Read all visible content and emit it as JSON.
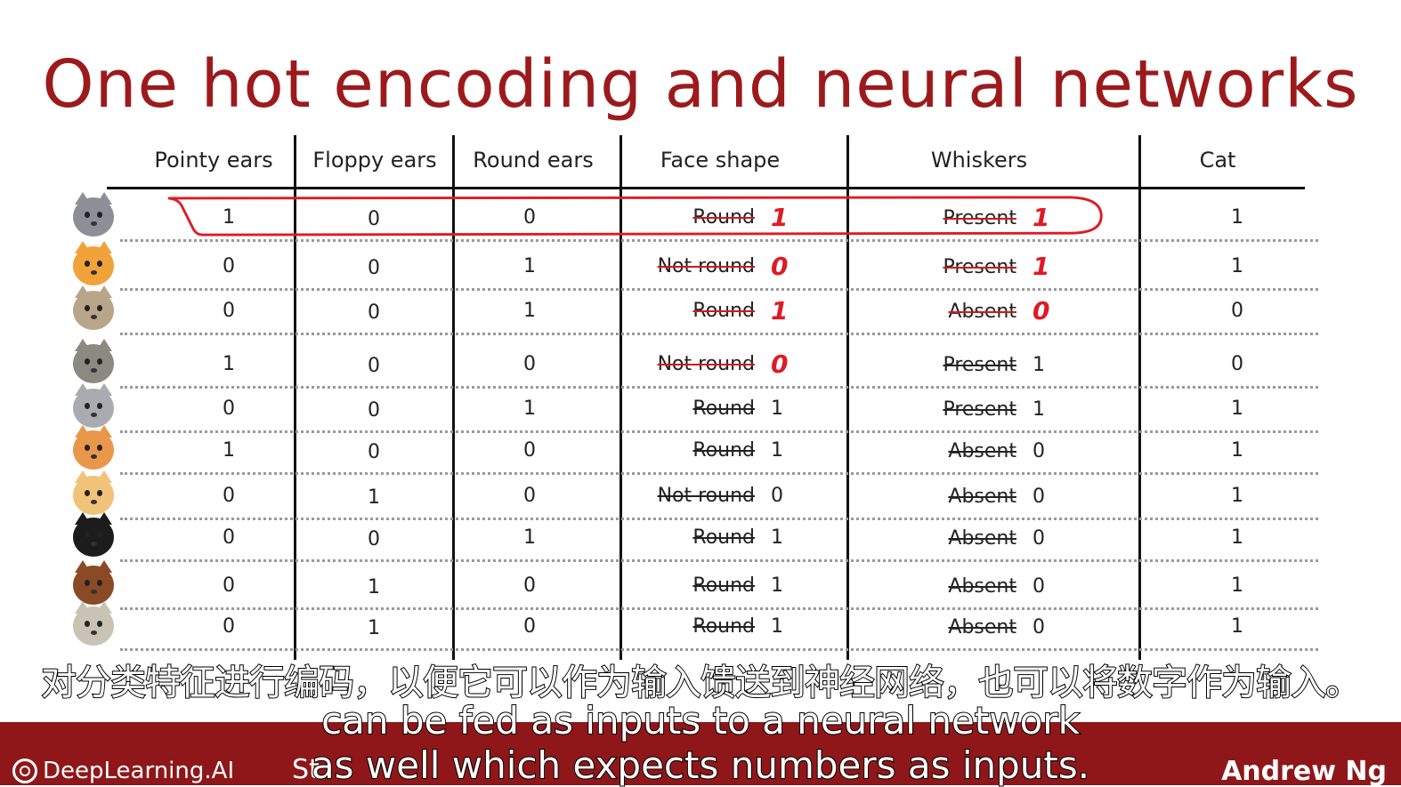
{
  "title": "One hot encoding and neural networks",
  "columns": [
    "Pointy ears",
    "Floppy ears",
    "Round ears",
    "Face shape",
    "Whiskers",
    "Cat"
  ],
  "rows": [
    {
      "pointy": "1",
      "floppy": "0",
      "round": "0",
      "face": "Round",
      "face_num": "1",
      "face_red": true,
      "whiskers": "Present",
      "whiskers_num": "1",
      "whiskers_red": true,
      "cat": "1",
      "animal": "gray-cat-icon",
      "color": "#8c9096"
    },
    {
      "pointy": "0",
      "floppy": "0",
      "round": "1",
      "face": "Not round",
      "face_num": "0",
      "face_red": true,
      "whiskers": "Present",
      "whiskers_num": "1",
      "whiskers_red": true,
      "cat": "1",
      "animal": "orange-cat-icon",
      "color": "#f2a23a"
    },
    {
      "pointy": "0",
      "floppy": "0",
      "round": "1",
      "face": "Round",
      "face_num": "1",
      "face_red": true,
      "whiskers": "Absent",
      "whiskers_num": "0",
      "whiskers_red": true,
      "cat": "0",
      "animal": "bear-dog-icon",
      "color": "#b8a58a"
    },
    {
      "pointy": "1",
      "floppy": "0",
      "round": "0",
      "face": "Not round",
      "face_num": "0",
      "face_red": true,
      "whiskers": "Present",
      "whiskers_num": "1",
      "whiskers_red": false,
      "cat": "0",
      "animal": "wolf-icon",
      "color": "#8a8a82"
    },
    {
      "pointy": "0",
      "floppy": "0",
      "round": "1",
      "face": "Round",
      "face_num": "1",
      "face_red": false,
      "whiskers": "Present",
      "whiskers_num": "1",
      "whiskers_red": false,
      "cat": "1",
      "animal": "gray-kitten-icon",
      "color": "#a9abb0"
    },
    {
      "pointy": "1",
      "floppy": "0",
      "round": "0",
      "face": "Round",
      "face_num": "1",
      "face_red": false,
      "whiskers": "Absent",
      "whiskers_num": "0",
      "whiskers_red": false,
      "cat": "1",
      "animal": "shiba-icon",
      "color": "#e9974a"
    },
    {
      "pointy": "0",
      "floppy": "1",
      "round": "0",
      "face": "Not round",
      "face_num": "0",
      "face_red": false,
      "whiskers": "Absent",
      "whiskers_num": "0",
      "whiskers_red": false,
      "cat": "1",
      "animal": "yellow-dog-icon",
      "color": "#f0c27a"
    },
    {
      "pointy": "0",
      "floppy": "0",
      "round": "1",
      "face": "Round",
      "face_num": "1",
      "face_red": false,
      "whiskers": "Absent",
      "whiskers_num": "0",
      "whiskers_red": false,
      "cat": "1",
      "animal": "tuxedo-cat-icon",
      "color": "#1c1c1c"
    },
    {
      "pointy": "0",
      "floppy": "1",
      "round": "0",
      "face": "Round",
      "face_num": "1",
      "face_red": false,
      "whiskers": "Absent",
      "whiskers_num": "0",
      "whiskers_red": false,
      "cat": "1",
      "animal": "brown-dog-icon",
      "color": "#8a4a26"
    },
    {
      "pointy": "0",
      "floppy": "1",
      "round": "0",
      "face": "Round",
      "face_num": "1",
      "face_red": false,
      "whiskers": "Absent",
      "whiskers_num": "0",
      "whiskers_red": false,
      "cat": "1",
      "animal": "pug-icon",
      "color": "#c9c3b6"
    }
  ],
  "subtitle_zh": "对分类特征进行编码，以便它可以作为输入馈送到神经网络，也可以将数字作为输入。",
  "subtitle_en_1": "can be fed as inputs to a neural network",
  "subtitle_en_2": "as well which expects numbers as inputs.",
  "footer": {
    "logo": "DeepLearning.AI",
    "partial": "St",
    "author": "Andrew Ng",
    "bg": "#8f1719"
  },
  "accent": "#9c1a1c",
  "annotation_red": "#e01a24"
}
